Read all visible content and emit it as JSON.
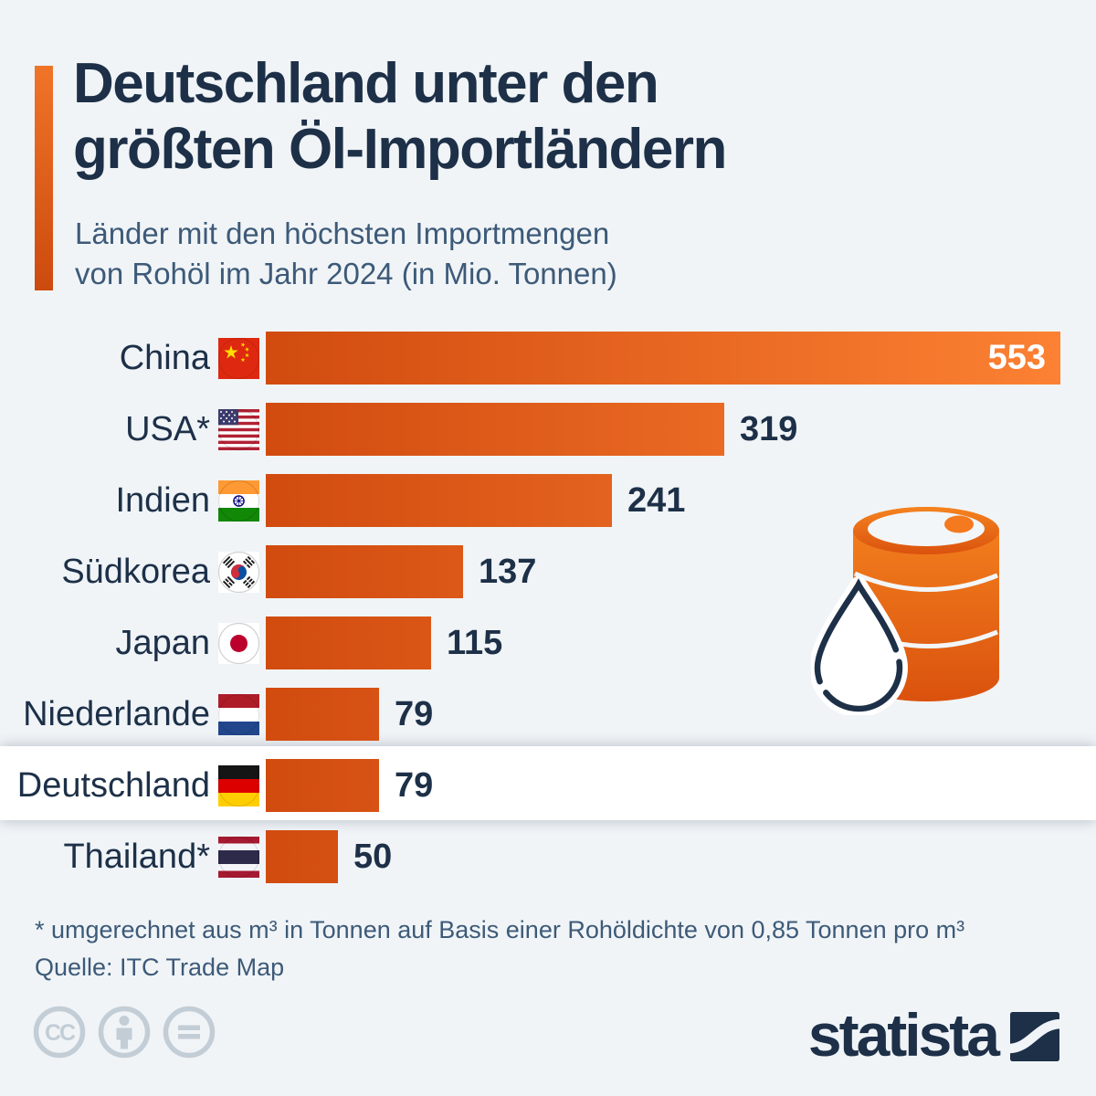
{
  "page": {
    "background": "#f0f4f7"
  },
  "header": {
    "title": "Deutschland unter den\ngrößten Öl-Importländern",
    "subtitle": "Länder mit den höchsten Importmengen\nvon Rohöl im Jahr 2024 (in Mio. Tonnen)"
  },
  "chart_data": {
    "type": "bar",
    "orientation": "horizontal",
    "title": "Deutschland unter den größten Öl-Importländern",
    "subtitle": "Länder mit den höchsten Importmengen von Rohöl im Jahr 2024 (in Mio. Tonnen)",
    "unit": "Mio. Tonnen",
    "xlim": [
      0,
      553
    ],
    "grid": false,
    "legend": false,
    "highlighted_category": "Deutschland",
    "bar_gradient": [
      "#d14b0f",
      "#fc8133"
    ],
    "categories": [
      "China",
      "USA*",
      "Indien",
      "Südkorea",
      "Japan",
      "Niederlande",
      "Deutschland",
      "Thailand*"
    ],
    "values": [
      553,
      319,
      241,
      137,
      115,
      79,
      79,
      50
    ],
    "rows": [
      {
        "label": "China",
        "flag": "china",
        "value": "553",
        "value_inside": true
      },
      {
        "label": "USA*",
        "flag": "usa",
        "value": "319"
      },
      {
        "label": "Indien",
        "flag": "india",
        "value": "241"
      },
      {
        "label": "Südkorea",
        "flag": "south-korea",
        "value": "137"
      },
      {
        "label": "Japan",
        "flag": "japan",
        "value": "115"
      },
      {
        "label": "Niederlande",
        "flag": "netherlands",
        "value": "79"
      },
      {
        "label": "Deutschland",
        "flag": "germany",
        "value": "79",
        "highlighted": true
      },
      {
        "label": "Thailand*",
        "flag": "thailand",
        "value": "50"
      }
    ]
  },
  "decor": {
    "oil_barrel_icon": "oil-barrel-with-droplet",
    "accent_colors": [
      "#f07428",
      "#cc4a0e"
    ]
  },
  "footer": {
    "footnote": "* umgerechnet aus m³ in Tonnen auf Basis einer Rohöldichte von 0,85 Tonnen pro m³",
    "source": "Quelle: ITC Trade Map",
    "license_icons": [
      "cc-icon",
      "attribution-icon",
      "no-derivatives-icon"
    ],
    "brand": "statista"
  },
  "colors": {
    "background": "#f0f4f7",
    "text_dark": "#1d3048",
    "text_medium": "#3d5a78",
    "bar_dark": "#d14b0f",
    "bar_light": "#fc8133",
    "highlight_band": "#ffffff",
    "license_icon": "#c3cdd6"
  }
}
